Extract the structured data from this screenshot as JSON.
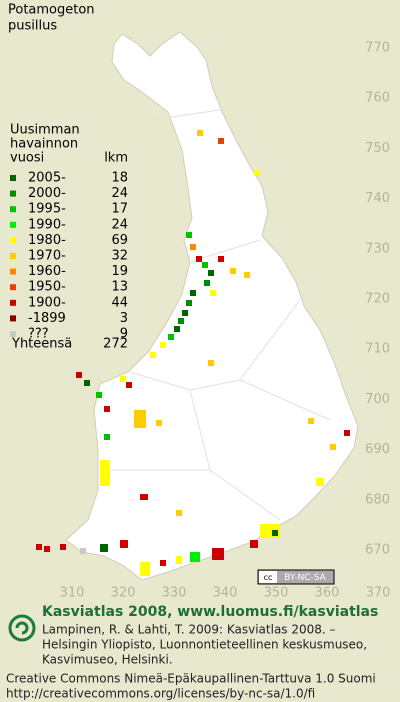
{
  "map": {
    "title": [
      "Potamogeton",
      "pusillus"
    ],
    "y_labels": [
      "770",
      "760",
      "750",
      "740",
      "730",
      "720",
      "710",
      "700",
      "690",
      "680",
      "670"
    ],
    "x_labels": [
      "310",
      "320",
      "330",
      "340",
      "350",
      "360",
      "370"
    ],
    "legend": {
      "header": [
        "Uusimman",
        "havainnon",
        "vuosi"
      ],
      "count_header": "lkm",
      "rows": [
        {
          "label": "2005-",
          "count": "18",
          "color": "#006400"
        },
        {
          "label": "2000-",
          "count": "24",
          "color": "#008c00"
        },
        {
          "label": "1995-",
          "count": "17",
          "color": "#00c000"
        },
        {
          "label": "1990-",
          "count": "24",
          "color": "#00ee00"
        },
        {
          "label": "1980-",
          "count": "69",
          "color": "#ffff00"
        },
        {
          "label": "1970-",
          "count": "32",
          "color": "#ffcc00"
        },
        {
          "label": "1960-",
          "count": "19",
          "color": "#ff8800"
        },
        {
          "label": "1950-",
          "count": "13",
          "color": "#e84000"
        },
        {
          "label": "1900-",
          "count": "44",
          "color": "#cc0000"
        },
        {
          "label": "-1899",
          "count": "3",
          "color": "#880000"
        },
        {
          "label": "???",
          "count": "9",
          "color": "#c8c8c8"
        }
      ],
      "total_label": "Yhteensä",
      "total": "272"
    },
    "license_badge": "BY-NC-SA"
  },
  "footer": {
    "heading": "Kasviatlas 2008, www.luomus.fi/kasviatlas",
    "citation": [
      "Lampinen, R. & Lahti, T. 2009: Kasviatlas 2008. –",
      "Helsingin Yliopisto, Luonnontieteellinen keskusmuseo,",
      "Kasvimuseo, Helsinki."
    ],
    "license": [
      "Creative Commons Nimeä-Epäkaupallinen-Tarttuva 1.0 Suomi",
      "http://creativecommons.org/licenses/by-nc-sa/1.0/fi"
    ]
  }
}
